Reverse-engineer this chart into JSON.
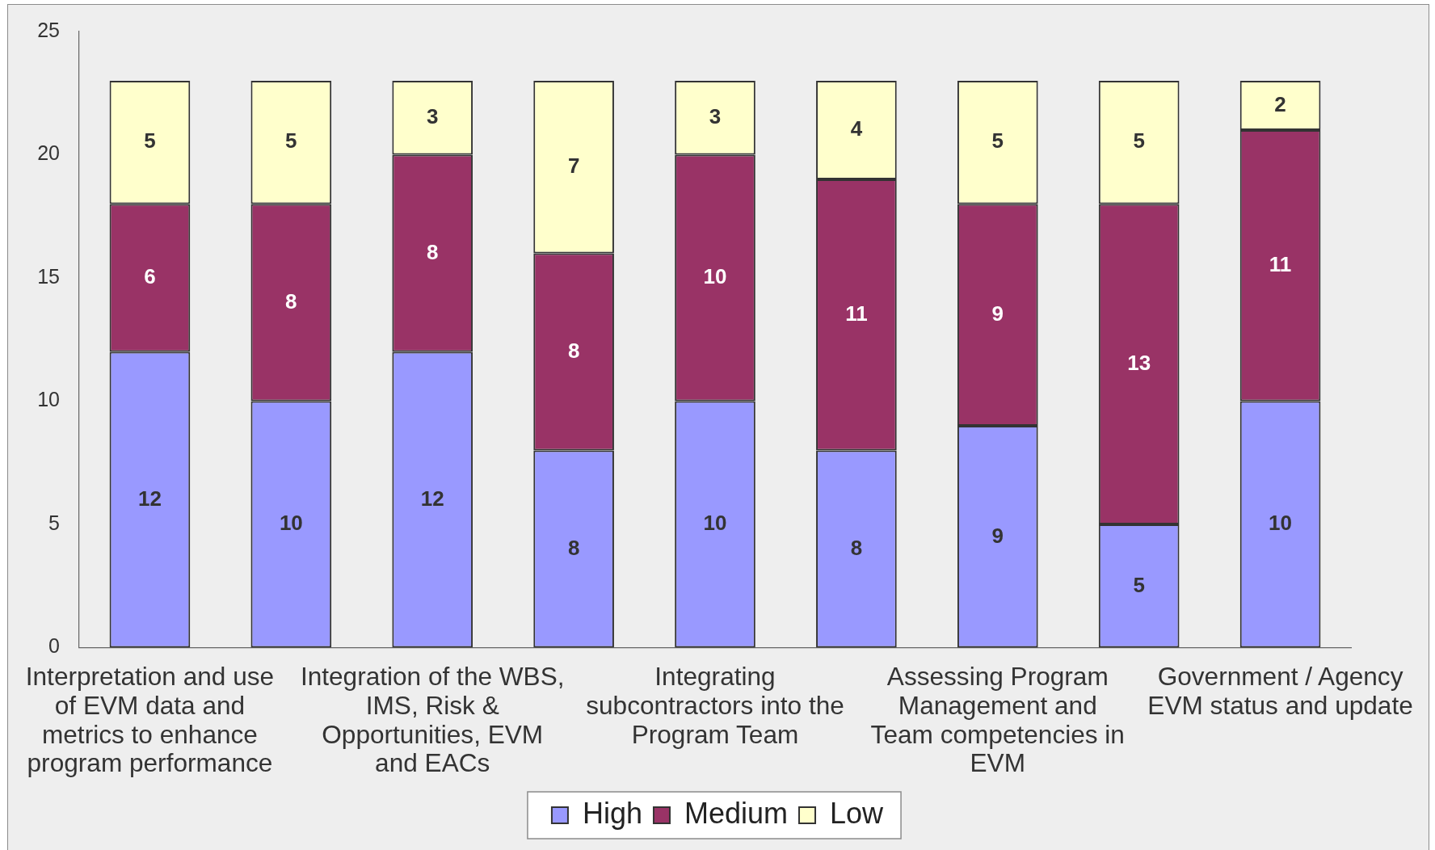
{
  "chart_data": {
    "type": "bar",
    "categories": [
      "Interpretation and use of EVM data and metrics to enhance program performance",
      null,
      "Integration of the WBS, IMS, Risk & Opportunities, EVM and EACs",
      null,
      "Integrating subcontractors into the Program Team",
      null,
      "Assessing Program Management and Team competencies in EVM",
      null,
      "Government / Agency EVM status and update"
    ],
    "series": [
      {
        "name": "High",
        "color": "#9999ff",
        "values": [
          12,
          10,
          12,
          8,
          10,
          8,
          9,
          5,
          10
        ]
      },
      {
        "name": "Medium",
        "color": "#993366",
        "values": [
          6,
          8,
          8,
          8,
          10,
          11,
          9,
          13,
          11
        ]
      },
      {
        "name": "Low",
        "color": "#ffffcc",
        "values": [
          5,
          5,
          3,
          7,
          3,
          4,
          5,
          5,
          2
        ]
      }
    ],
    "stacked": true,
    "ylim": [
      0,
      25
    ],
    "yticks": [
      0,
      5,
      10,
      15,
      20,
      25
    ],
    "data_labels": true,
    "legend": "bottom",
    "grid": false
  }
}
